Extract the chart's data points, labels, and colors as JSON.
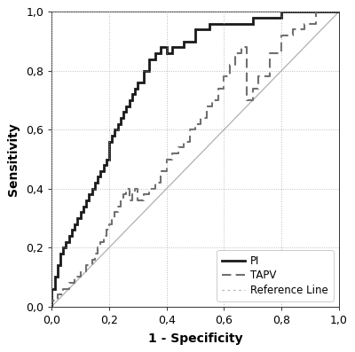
{
  "title": "",
  "xlabel": "1 - Specificity",
  "ylabel": "Sensitivity",
  "xlim": [
    0.0,
    1.0
  ],
  "ylim": [
    0.0,
    1.0
  ],
  "xticks": [
    0.0,
    0.2,
    0.4,
    0.6,
    0.8,
    1.0
  ],
  "yticks": [
    0.0,
    0.2,
    0.4,
    0.6,
    0.8,
    1.0
  ],
  "xticklabels": [
    "0,0",
    "0,2",
    "0,4",
    "0,6",
    "0,8",
    "1,0"
  ],
  "yticklabels": [
    "0,0",
    "0,2",
    "0,4",
    "0,6",
    "0,8",
    "1,0"
  ],
  "pi_color": "#1a1a1a",
  "tapv_color": "#707070",
  "ref_color": "#b0b0b0",
  "background": "#ffffff",
  "pi_x": [
    0.0,
    0.0,
    0.01,
    0.01,
    0.02,
    0.02,
    0.03,
    0.03,
    0.04,
    0.04,
    0.05,
    0.05,
    0.06,
    0.06,
    0.07,
    0.07,
    0.08,
    0.08,
    0.09,
    0.09,
    0.1,
    0.1,
    0.11,
    0.11,
    0.12,
    0.12,
    0.13,
    0.13,
    0.14,
    0.14,
    0.15,
    0.15,
    0.16,
    0.16,
    0.17,
    0.17,
    0.18,
    0.18,
    0.19,
    0.19,
    0.2,
    0.2,
    0.21,
    0.21,
    0.22,
    0.22,
    0.23,
    0.23,
    0.24,
    0.24,
    0.25,
    0.25,
    0.26,
    0.26,
    0.27,
    0.27,
    0.28,
    0.28,
    0.29,
    0.29,
    0.3,
    0.3,
    0.32,
    0.32,
    0.34,
    0.34,
    0.36,
    0.36,
    0.38,
    0.38,
    0.4,
    0.4,
    0.42,
    0.42,
    0.44,
    0.44,
    0.46,
    0.46,
    0.5,
    0.5,
    0.55,
    0.55,
    0.6,
    0.6,
    0.65,
    0.65,
    0.7,
    0.7,
    0.75,
    0.75,
    0.8,
    0.8,
    1.0
  ],
  "pi_y": [
    0.0,
    0.06,
    0.06,
    0.1,
    0.1,
    0.14,
    0.14,
    0.18,
    0.18,
    0.2,
    0.2,
    0.22,
    0.22,
    0.24,
    0.24,
    0.26,
    0.26,
    0.28,
    0.28,
    0.3,
    0.3,
    0.32,
    0.32,
    0.34,
    0.34,
    0.36,
    0.36,
    0.38,
    0.38,
    0.4,
    0.4,
    0.42,
    0.42,
    0.44,
    0.44,
    0.46,
    0.46,
    0.48,
    0.48,
    0.5,
    0.5,
    0.56,
    0.56,
    0.58,
    0.58,
    0.6,
    0.6,
    0.62,
    0.62,
    0.64,
    0.64,
    0.66,
    0.66,
    0.68,
    0.68,
    0.7,
    0.7,
    0.72,
    0.72,
    0.74,
    0.74,
    0.76,
    0.76,
    0.8,
    0.8,
    0.84,
    0.84,
    0.86,
    0.86,
    0.88,
    0.88,
    0.86,
    0.86,
    0.88,
    0.88,
    0.88,
    0.88,
    0.9,
    0.9,
    0.94,
    0.94,
    0.96,
    0.96,
    0.96,
    0.96,
    0.96,
    0.96,
    0.98,
    0.98,
    0.98,
    0.98,
    1.0,
    1.0
  ],
  "tapv_x": [
    0.0,
    0.0,
    0.02,
    0.02,
    0.04,
    0.04,
    0.06,
    0.06,
    0.08,
    0.08,
    0.1,
    0.1,
    0.12,
    0.12,
    0.14,
    0.14,
    0.15,
    0.15,
    0.16,
    0.16,
    0.17,
    0.17,
    0.18,
    0.18,
    0.19,
    0.19,
    0.2,
    0.2,
    0.21,
    0.21,
    0.22,
    0.22,
    0.23,
    0.23,
    0.24,
    0.24,
    0.25,
    0.25,
    0.26,
    0.26,
    0.27,
    0.27,
    0.28,
    0.28,
    0.29,
    0.29,
    0.3,
    0.3,
    0.32,
    0.32,
    0.34,
    0.34,
    0.36,
    0.36,
    0.38,
    0.38,
    0.4,
    0.4,
    0.42,
    0.42,
    0.44,
    0.44,
    0.46,
    0.46,
    0.48,
    0.48,
    0.5,
    0.5,
    0.52,
    0.52,
    0.54,
    0.54,
    0.56,
    0.56,
    0.58,
    0.58,
    0.6,
    0.6,
    0.62,
    0.62,
    0.64,
    0.64,
    0.66,
    0.66,
    0.68,
    0.68,
    0.7,
    0.7,
    0.72,
    0.72,
    0.76,
    0.76,
    0.8,
    0.8,
    0.84,
    0.84,
    0.88,
    0.88,
    0.92,
    0.92,
    1.0
  ],
  "tapv_y": [
    0.0,
    0.02,
    0.02,
    0.04,
    0.04,
    0.06,
    0.06,
    0.08,
    0.08,
    0.1,
    0.1,
    0.12,
    0.12,
    0.14,
    0.14,
    0.16,
    0.16,
    0.18,
    0.18,
    0.2,
    0.2,
    0.22,
    0.22,
    0.24,
    0.24,
    0.26,
    0.26,
    0.28,
    0.28,
    0.3,
    0.3,
    0.32,
    0.32,
    0.34,
    0.34,
    0.36,
    0.36,
    0.38,
    0.38,
    0.4,
    0.4,
    0.36,
    0.36,
    0.38,
    0.38,
    0.4,
    0.4,
    0.36,
    0.36,
    0.38,
    0.38,
    0.4,
    0.4,
    0.42,
    0.42,
    0.46,
    0.46,
    0.5,
    0.5,
    0.52,
    0.52,
    0.54,
    0.54,
    0.56,
    0.56,
    0.6,
    0.6,
    0.62,
    0.62,
    0.64,
    0.64,
    0.68,
    0.68,
    0.7,
    0.7,
    0.74,
    0.74,
    0.78,
    0.78,
    0.82,
    0.82,
    0.86,
    0.86,
    0.88,
    0.88,
    0.7,
    0.7,
    0.74,
    0.74,
    0.78,
    0.78,
    0.86,
    0.86,
    0.92,
    0.92,
    0.94,
    0.94,
    0.96,
    0.96,
    1.0,
    1.0
  ],
  "grid_color": "#aaaaaa",
  "legend_fontsize": 8.5
}
